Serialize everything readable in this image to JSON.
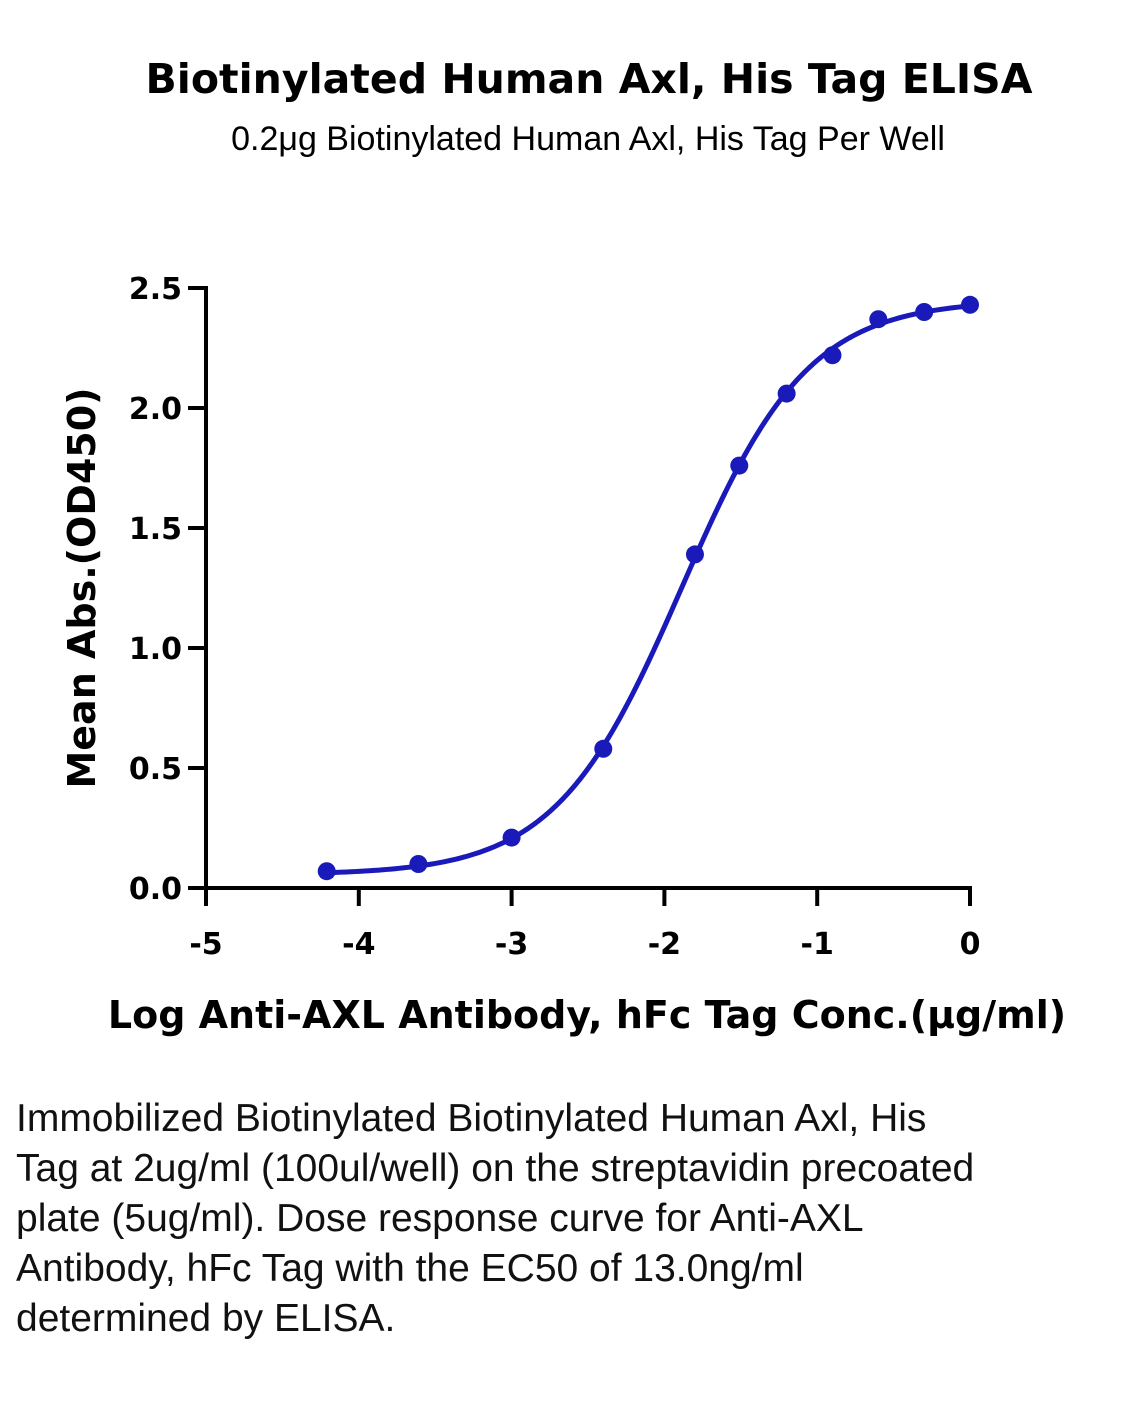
{
  "chart_data": {
    "type": "scatter",
    "title": "Biotinylated Human Axl, His Tag ELISA",
    "subtitle": "0.2μg Biotinylated Human Axl, His Tag Per Well",
    "xlabel": "Log Anti-AXL Antibody, hFc Tag Conc.(μg/ml)",
    "ylabel": "Mean Abs.(OD450)",
    "xlim": [
      -5,
      0
    ],
    "ylim": [
      0,
      2.5
    ],
    "x_ticks": [
      "-5",
      "-4",
      "-3",
      "-2",
      "-1",
      "0"
    ],
    "y_ticks": [
      "0.0",
      "0.5",
      "1.0",
      "1.5",
      "2.0",
      "2.5"
    ],
    "grid": false,
    "legend": "none",
    "series": [
      {
        "color": "#1a1aba",
        "marker": "circle",
        "fit": "four-parameter logistic",
        "x": [
          -4.21,
          -3.61,
          -3.0,
          -2.4,
          -1.8,
          -1.51,
          -1.2,
          -0.9,
          -0.6,
          -0.3,
          0.0
        ],
        "y": [
          0.07,
          0.1,
          0.21,
          0.58,
          1.39,
          1.76,
          2.06,
          2.22,
          2.37,
          2.4,
          2.43
        ]
      }
    ],
    "fit_params": {
      "bottom": 0.055,
      "top": 2.45,
      "logEC50": -1.886,
      "hill": 1.05
    }
  },
  "caption": "Immobilized Biotinylated Biotinylated Human Axl, His Tag at 2ug/ml (100ul/well) on the streptavidin precoated plate (5ug/ml). Dose response curve for Anti-AXL Antibody, hFc Tag with the EC50 of 13.0ng/ml determined by ELISA."
}
